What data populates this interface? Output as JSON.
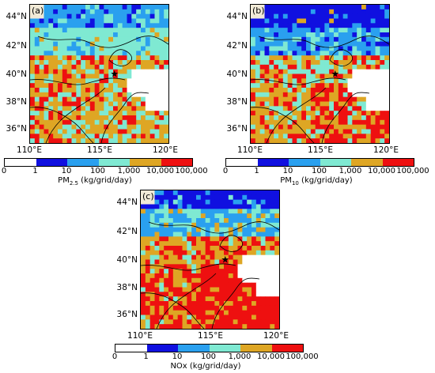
{
  "chart_data": [
    {
      "type": "heatmap",
      "panel_label": "(a)",
      "variable": "PM2.5",
      "quantity_prefix": "PM",
      "quantity_sub": "2.5",
      "unit_label": " (kg/grid/day)",
      "xlim": [
        110,
        120.5
      ],
      "ylim": [
        35,
        45
      ],
      "x_ticks": [
        "110°E",
        "115°E",
        "120°E"
      ],
      "y_ticks": [
        "44°N",
        "42°N",
        "40°N",
        "38°N",
        "36°N"
      ],
      "colorbar_ticks": [
        "0",
        "1",
        "10",
        "100",
        "1,000",
        "10,000",
        "100,000"
      ],
      "dominant_classes": {
        "north": "100-1,000",
        "central": "1,000-10,000",
        "hotspots": "10,000-100,000"
      },
      "marker": {
        "type": "star",
        "lon": 116.4,
        "lat": 40.0
      }
    },
    {
      "type": "heatmap",
      "panel_label": "(b)",
      "variable": "PM10",
      "quantity_prefix": "PM",
      "quantity_sub": "10",
      "unit_label": " (kg/grid/day)",
      "xlim": [
        110,
        120.5
      ],
      "ylim": [
        35,
        45
      ],
      "x_ticks": [
        "110°E",
        "115°E",
        "120°E"
      ],
      "y_ticks": [
        "44°N",
        "42°N",
        "40°N",
        "38°N",
        "36°N"
      ],
      "colorbar_ticks": [
        "0",
        "1",
        "10",
        "100",
        "1,000",
        "10,000",
        "100,000"
      ],
      "dominant_classes": {
        "north": "1-10",
        "central": "1,000-10,000",
        "hotspots": "10,000-100,000"
      },
      "marker": {
        "type": "star",
        "lon": 116.4,
        "lat": 40.0
      }
    },
    {
      "type": "heatmap",
      "panel_label": "(c)",
      "variable": "NOx",
      "quantity_prefix": "NOx",
      "quantity_sub": "",
      "unit_label": " (kg/grid/day)",
      "xlim": [
        110,
        120.5
      ],
      "ylim": [
        35,
        45
      ],
      "x_ticks": [
        "110°E",
        "115°E",
        "120°E"
      ],
      "y_ticks": [
        "44°N",
        "42°N",
        "40°N",
        "38°N",
        "36°N"
      ],
      "colorbar_ticks": [
        "0",
        "1",
        "10",
        "100",
        "1,000",
        "10,000",
        "100,000"
      ],
      "dominant_classes": {
        "north": "1-10",
        "central": "10,000-100,000",
        "hotspots": "10,000-100,000"
      },
      "marker": {
        "type": "star",
        "lon": 116.4,
        "lat": 40.0
      }
    }
  ],
  "colorbar_colors": [
    "#ffffff",
    "#1010e0",
    "#2aa0ef",
    "#7fe9d2",
    "#dea624",
    "#ee1010"
  ],
  "sea_color": "#ffffff",
  "land_edge_color": "#f1ead7"
}
